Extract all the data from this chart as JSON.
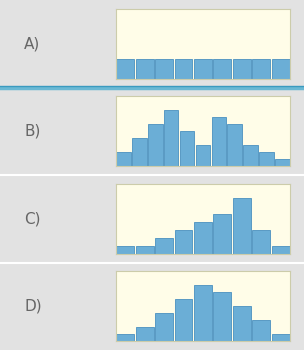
{
  "options": [
    "A)",
    "B)",
    "C)",
    "D)"
  ],
  "row_bg_colors": [
    "#e2e2e2",
    "#e2e2e2",
    "#e2e2e2",
    "#a8d8e8"
  ],
  "panel_bg": "#fffde8",
  "panel_border": "#ccccaa",
  "bar_color": "#6baed6",
  "bar_edge": "#4a90c0",
  "histograms": {
    "A": [
      4,
      4,
      4,
      4,
      4,
      4,
      4,
      4,
      4
    ],
    "B": [
      2,
      4,
      6,
      8,
      5,
      3,
      7,
      6,
      3,
      2,
      1
    ],
    "C": [
      1,
      1,
      2,
      3,
      4,
      5,
      7,
      3,
      1
    ],
    "D": [
      1,
      2,
      4,
      6,
      8,
      7,
      5,
      3,
      1
    ]
  },
  "label_fontsize": 11,
  "label_color": "#666666",
  "fig_width": 3.04,
  "fig_height": 3.5,
  "dpi": 100
}
